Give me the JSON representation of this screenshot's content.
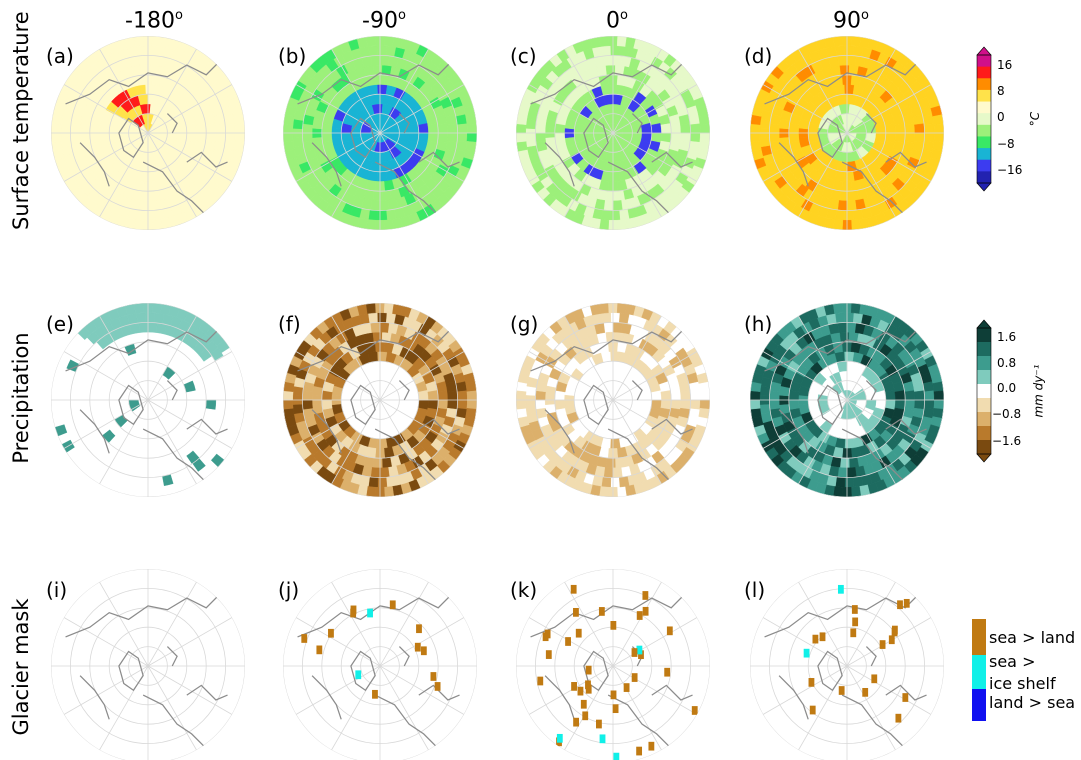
{
  "columns": [
    {
      "base": "-180",
      "sup": "o"
    },
    {
      "base": "-90",
      "sup": "o"
    },
    {
      "base": "0",
      "sup": "o"
    },
    {
      "base": "90",
      "sup": "o"
    }
  ],
  "rows": [
    "Surface temperature",
    "Precipitation",
    "Glacier mask"
  ],
  "panel_labels": [
    "(a)",
    "(b)",
    "(c)",
    "(d)",
    "(e)",
    "(f)",
    "(g)",
    "(h)",
    "(i)",
    "(j)",
    "(k)",
    "(l)"
  ],
  "colorbars": {
    "temperature": {
      "ticks": [
        "16",
        "8",
        "0",
        "−8",
        "−16"
      ],
      "unit": "°C",
      "colors": [
        "#d0108a",
        "#ff1a1a",
        "#ff8c00",
        "#ffe24a",
        "#fffacd",
        "#e6f9c9",
        "#9cf07a",
        "#39e865",
        "#19b4d4",
        "#3c3cf0",
        "#2222b0"
      ]
    },
    "precipitation": {
      "ticks": [
        "1.6",
        "0.8",
        "0.0",
        "−0.8",
        "−1.6"
      ],
      "unit": "mm dy⁻¹",
      "colors": [
        "#0e3e37",
        "#1d6b60",
        "#3d9c8e",
        "#7fcbbd",
        "#ffffff",
        "#f1dcb0",
        "#dcb06b",
        "#b97a2c",
        "#7a4a10"
      ]
    }
  },
  "glacier_legend": [
    {
      "label": "sea > land",
      "color": "#c07a12"
    },
    {
      "label": "sea >\nice shelf",
      "color": "#10f0e8"
    },
    {
      "label": "land > sea",
      "color": "#1010f0"
    }
  ],
  "chart_data": {
    "type": "heatmap",
    "description_fields": [
      "rows",
      "columns"
    ],
    "panels": [
      {
        "id": "a",
        "row": "Surface temperature",
        "col": "-180",
        "dominant": "#fdf8cc",
        "notes": "warm anomaly over Greenland up to 16"
      },
      {
        "id": "b",
        "row": "Surface temperature",
        "col": "-90",
        "dominant": "#5fe87a",
        "notes": "cooling about -8 to -16, cyan centre"
      },
      {
        "id": "c",
        "row": "Surface temperature",
        "col": "0",
        "dominant": "#e8f8cf",
        "notes": "mild cooling, blue ring around pole"
      },
      {
        "id": "d",
        "row": "Surface temperature",
        "col": "90",
        "dominant": "#ffd321",
        "notes": "warming about +4 to +8"
      },
      {
        "id": "e",
        "row": "Precipitation",
        "col": "-180",
        "dominant": "#ffffff",
        "notes": "sparse positive anomalies"
      },
      {
        "id": "f",
        "row": "Precipitation",
        "col": "-90",
        "dominant": "#dcb06b",
        "notes": "widespread drying"
      },
      {
        "id": "g",
        "row": "Precipitation",
        "col": "0",
        "dominant": "#f1dcb0",
        "notes": "weak drying"
      },
      {
        "id": "h",
        "row": "Precipitation",
        "col": "90",
        "dominant": "#3d9c8e",
        "notes": "widespread wetting"
      },
      {
        "id": "i",
        "row": "Glacier mask",
        "col": "-180",
        "notes": "no mask changes"
      },
      {
        "id": "j",
        "row": "Glacier mask",
        "col": "-90",
        "notes": "few sea > land cells"
      },
      {
        "id": "k",
        "row": "Glacier mask",
        "col": "0",
        "notes": "many sea > land cells"
      },
      {
        "id": "l",
        "row": "Glacier mask",
        "col": "90",
        "notes": "some sea > land cells"
      }
    ]
  }
}
